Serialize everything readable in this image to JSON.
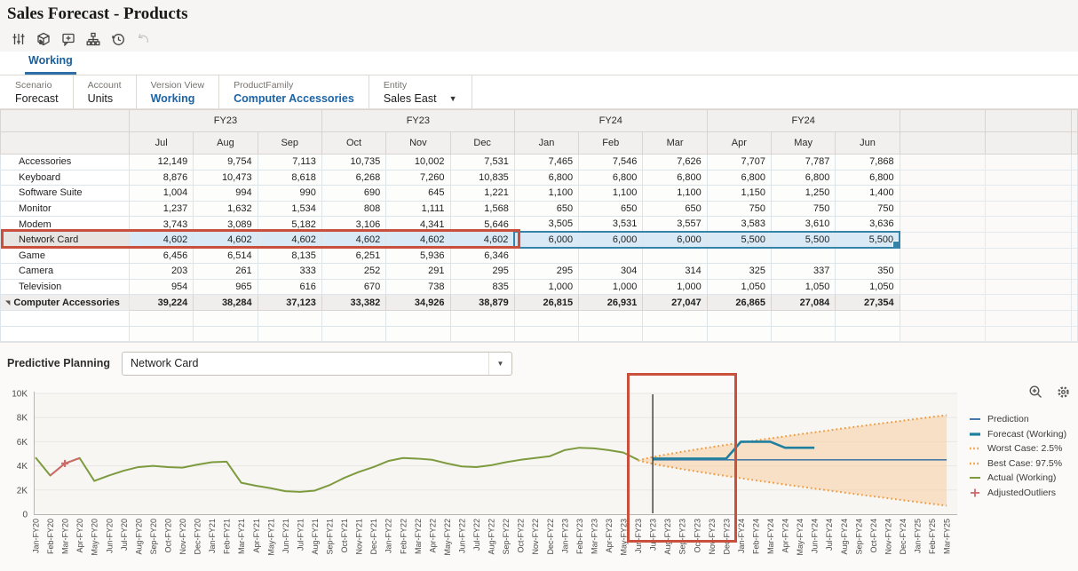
{
  "title": "Sales Forecast - Products",
  "tabs": {
    "working": "Working"
  },
  "toolbar_icons": [
    "adjust-sliders-icon",
    "cube-icon",
    "comment-add-icon",
    "sitemap-icon",
    "history-icon",
    "undo-icon"
  ],
  "pov": {
    "items": [
      {
        "label": "Scenario",
        "value": "Forecast",
        "style": "normal",
        "dropdown": false
      },
      {
        "label": "Account",
        "value": "Units",
        "style": "normal",
        "dropdown": false
      },
      {
        "label": "Version View",
        "value": "Working",
        "style": "link",
        "dropdown": false
      },
      {
        "label": "ProductFamily",
        "value": "Computer Accessories",
        "style": "link",
        "dropdown": false
      },
      {
        "label": "Entity",
        "value": "Sales East",
        "style": "normal",
        "dropdown": true
      }
    ]
  },
  "grid": {
    "column_groups": [
      "FY23",
      "FY23",
      "FY24",
      "FY24"
    ],
    "months": [
      "Jul",
      "Aug",
      "Sep",
      "Oct",
      "Nov",
      "Dec",
      "Jan",
      "Feb",
      "Mar",
      "Apr",
      "May",
      "Jun"
    ],
    "rows": [
      {
        "label": "Accessories",
        "values": [
          "12,149",
          "9,754",
          "7,113",
          "10,735",
          "10,002",
          "7,531",
          "7,465",
          "7,546",
          "7,626",
          "7,707",
          "7,787",
          "7,868"
        ]
      },
      {
        "label": "Keyboard",
        "values": [
          "8,876",
          "10,473",
          "8,618",
          "6,268",
          "7,260",
          "10,835",
          "6,800",
          "6,800",
          "6,800",
          "6,800",
          "6,800",
          "6,800"
        ]
      },
      {
        "label": "Software Suite",
        "values": [
          "1,004",
          "994",
          "990",
          "690",
          "645",
          "1,221",
          "1,100",
          "1,100",
          "1,100",
          "1,150",
          "1,250",
          "1,400"
        ]
      },
      {
        "label": "Monitor",
        "values": [
          "1,237",
          "1,632",
          "1,534",
          "808",
          "1,111",
          "1,568",
          "650",
          "650",
          "650",
          "750",
          "750",
          "750"
        ]
      },
      {
        "label": "Modem",
        "values": [
          "3,743",
          "3,089",
          "5,182",
          "3,106",
          "4,341",
          "5,646",
          "3,505",
          "3,531",
          "3,557",
          "3,583",
          "3,610",
          "3,636"
        ]
      },
      {
        "label": "Network Card",
        "selected": true,
        "values": [
          "4,602",
          "4,602",
          "4,602",
          "4,602",
          "4,602",
          "4,602",
          "6,000",
          "6,000",
          "6,000",
          "5,500",
          "5,500",
          "5,500"
        ]
      },
      {
        "label": "Game",
        "values": [
          "6,456",
          "6,514",
          "8,135",
          "6,251",
          "5,936",
          "6,346",
          "",
          "",
          "",
          "",
          "",
          ""
        ]
      },
      {
        "label": "Camera",
        "values": [
          "203",
          "261",
          "333",
          "252",
          "291",
          "295",
          "295",
          "304",
          "314",
          "325",
          "337",
          "350"
        ]
      },
      {
        "label": "Television",
        "values": [
          "954",
          "965",
          "616",
          "670",
          "738",
          "835",
          "1,000",
          "1,000",
          "1,000",
          "1,050",
          "1,050",
          "1,050"
        ]
      },
      {
        "label": "Computer Accessories",
        "total": true,
        "values": [
          "39,224",
          "38,284",
          "37,123",
          "33,382",
          "34,926",
          "38,879",
          "26,815",
          "26,931",
          "27,047",
          "26,865",
          "27,084",
          "27,354"
        ]
      }
    ],
    "empty_rows": 2
  },
  "predictive": {
    "label": "Predictive Planning",
    "selected_member": "Network Card"
  },
  "chart_data": {
    "type": "line",
    "yticks": [
      {
        "v": 0,
        "label": "0"
      },
      {
        "v": 2000,
        "label": "2K"
      },
      {
        "v": 4000,
        "label": "4K"
      },
      {
        "v": 6000,
        "label": "6K"
      },
      {
        "v": 8000,
        "label": "8K"
      },
      {
        "v": 10000,
        "label": "10K"
      }
    ],
    "ylim": [
      0,
      10000
    ],
    "x_labels": [
      "Jan-FY20",
      "Feb-FY20",
      "Mar-FY20",
      "Apr-FY20",
      "May-FY20",
      "Jun-FY20",
      "Jul-FY20",
      "Aug-FY20",
      "Sep-FY20",
      "Oct-FY20",
      "Nov-FY20",
      "Dec-FY20",
      "Jan-FY21",
      "Feb-FY21",
      "Mar-FY21",
      "Apr-FY21",
      "May-FY21",
      "Jun-FY21",
      "Jul-FY21",
      "Aug-FY21",
      "Sep-FY21",
      "Oct-FY21",
      "Nov-FY21",
      "Dec-FY21",
      "Jan-FY22",
      "Feb-FY22",
      "Mar-FY22",
      "Apr-FY22",
      "May-FY22",
      "Jun-FY22",
      "Jul-FY22",
      "Aug-FY22",
      "Sep-FY22",
      "Oct-FY22",
      "Nov-FY22",
      "Dec-FY22",
      "Jan-FY23",
      "Feb-FY23",
      "Mar-FY23",
      "Apr-FY23",
      "May-FY23",
      "Jun-FY23",
      "Jul-FY23",
      "Aug-FY23",
      "Sep-FY23",
      "Oct-FY23",
      "Nov-FY23",
      "Dec-FY23",
      "Jan-FY24",
      "Feb-FY24",
      "Mar-FY24",
      "Apr-FY24",
      "May-FY24",
      "Jun-FY24",
      "Jul-FY24",
      "Aug-FY24",
      "Sep-FY24",
      "Oct-FY24",
      "Nov-FY24",
      "Dec-FY24",
      "Jan-FY25",
      "Feb-FY25",
      "Mar-FY25"
    ],
    "series": [
      {
        "name": "Actual (Working)",
        "color": "#7d9b3e",
        "width": 2,
        "start_index": 0,
        "values": [
          4700,
          3200,
          4200,
          4650,
          2750,
          3200,
          3600,
          3900,
          4000,
          3900,
          3850,
          4100,
          4300,
          4350,
          2600,
          2350,
          2150,
          1900,
          1850,
          1950,
          2400,
          3000,
          3500,
          3900,
          4400,
          4650,
          4600,
          4500,
          4200,
          3950,
          3900,
          4050,
          4300,
          4500,
          4650,
          4800,
          5300,
          5500,
          5450,
          5300,
          5100,
          4500
        ]
      },
      {
        "name": "AdjustedOutliers",
        "color": "#cd6a6a",
        "width": 2,
        "start_index": 1,
        "values": [
          3200,
          4200,
          4650
        ],
        "marker_index": 2,
        "marker_value": 4200
      },
      {
        "name": "Prediction",
        "color": "#4a79a8",
        "width": 1.6,
        "start_index": 42,
        "values": [
          4500,
          4500,
          4500,
          4500,
          4500,
          4500,
          4500,
          4500,
          4500,
          4500,
          4500,
          4500,
          4500,
          4500,
          4500,
          4500,
          4500,
          4500,
          4500,
          4500,
          4500
        ]
      },
      {
        "name": "Forecast (Working)",
        "color": "#1f7f9e",
        "width": 2.6,
        "start_index": 42,
        "values": [
          4602,
          4602,
          4602,
          4602,
          4602,
          4602,
          6000,
          6000,
          6000,
          5500,
          5500,
          5500
        ]
      }
    ],
    "band": {
      "name": "confidence-interval",
      "start_index": 41,
      "end_index": 62,
      "start_value": 4450,
      "end_upper": 8200,
      "end_lower": 700,
      "curve_exponent": 0.85,
      "fill": "#f8cda1",
      "edge_color": "#ee9a3f"
    },
    "prediction_start_marker_index": 42,
    "grid_on": true,
    "legend_position": "right"
  },
  "legend": [
    {
      "label": "Prediction",
      "color": "#4a79a8",
      "style": "line"
    },
    {
      "label": "Forecast (Working)",
      "color": "#1f7f9e",
      "style": "line-thick"
    },
    {
      "label": "Worst Case: 2.5%",
      "color": "#ee9a3f",
      "style": "dotted"
    },
    {
      "label": "Best Case: 97.5%",
      "color": "#ee9a3f",
      "style": "dotted"
    },
    {
      "label": "Actual (Working)",
      "color": "#7d9b3e",
      "style": "line"
    },
    {
      "label": "AdjustedOutliers",
      "color": "#cd6a6a",
      "style": "plus"
    }
  ],
  "colors": {
    "annotation_red": "#c8503c",
    "selection_fill": "#d9eaf6",
    "selection_border": "#3583a8",
    "link_blue": "#1c63a5",
    "tab_blue": "#1b5f9b"
  }
}
